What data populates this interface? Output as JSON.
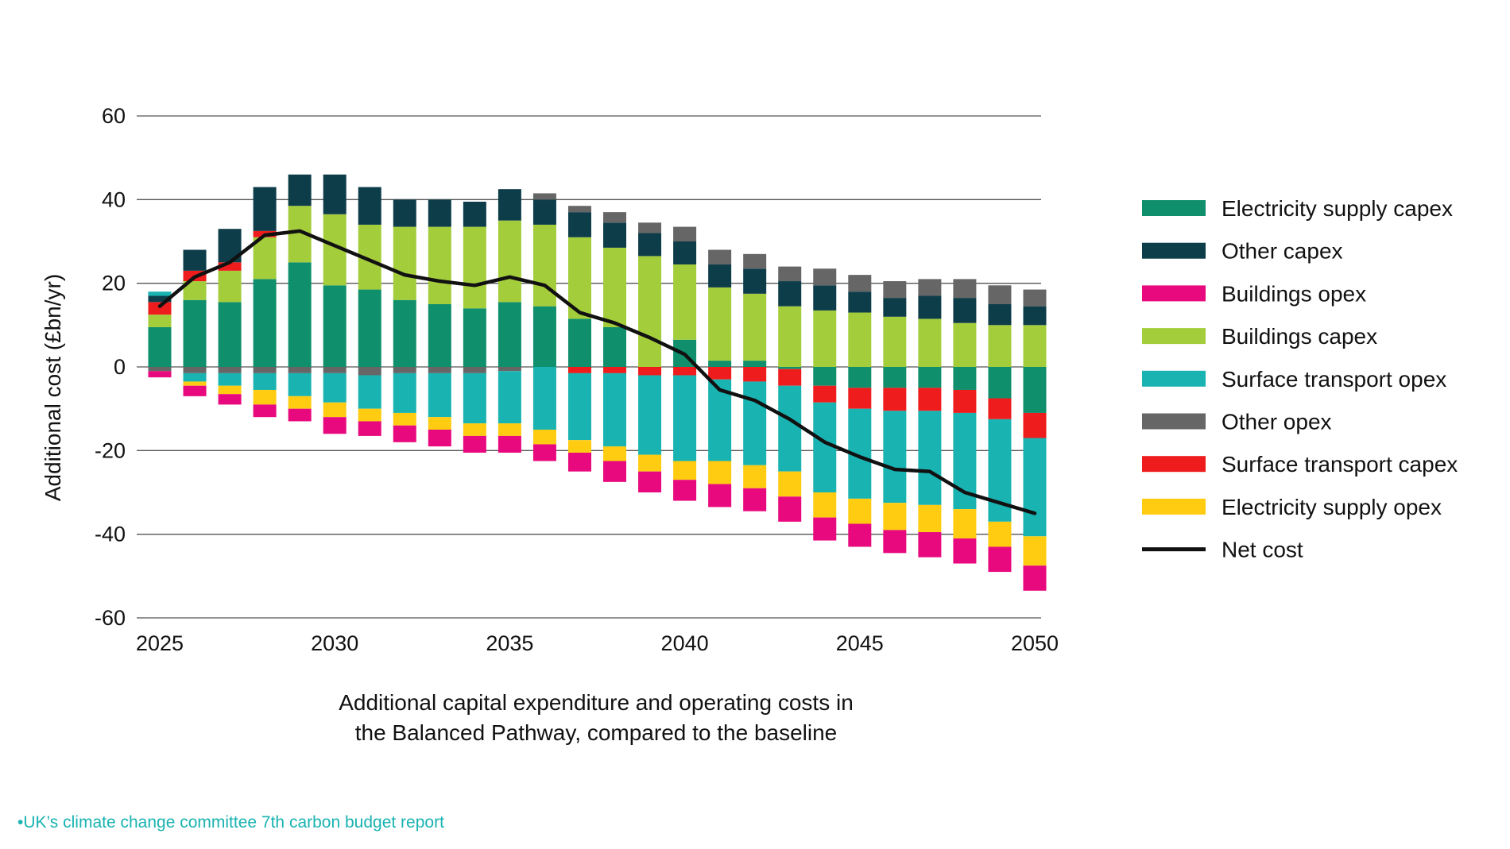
{
  "chart_data": {
    "type": "bar",
    "stacked": true,
    "title": "",
    "xlabel": "",
    "ylabel": "Additional cost (£bn/yr)",
    "ylim": [
      -60,
      60
    ],
    "yticks": [
      60,
      40,
      20,
      0,
      -20,
      -40,
      -60
    ],
    "xticks": [
      2025,
      2030,
      2035,
      2040,
      2045,
      2050
    ],
    "caption_lines": [
      "Additional capital expenditure and operating costs in",
      "the Balanced Pathway, compared to the baseline"
    ],
    "legend_position": "right",
    "categories": [
      2025,
      2026,
      2027,
      2028,
      2029,
      2030,
      2031,
      2032,
      2033,
      2034,
      2035,
      2036,
      2037,
      2038,
      2039,
      2040,
      2041,
      2042,
      2043,
      2044,
      2045,
      2046,
      2047,
      2048,
      2049,
      2050
    ],
    "series": [
      {
        "key": "elec_capex",
        "name": "Electricity supply capex",
        "color": "#0f8f6b",
        "values": [
          9.5,
          16,
          15.5,
          21,
          25,
          19.5,
          18.5,
          16,
          15,
          14,
          15.5,
          14.5,
          11.5,
          9.5,
          0,
          6.5,
          1.5,
          1.5,
          -0.5,
          -4.5,
          -5,
          -5,
          -5,
          -5.5,
          -7.5,
          -11
        ]
      },
      {
        "key": "bld_capex",
        "name": "Buildings capex",
        "color": "#a4cd3c",
        "values": [
          3,
          4.5,
          7.5,
          10,
          13.5,
          17,
          15.5,
          17.5,
          18.5,
          19.5,
          19.5,
          19.5,
          19.5,
          19,
          26.5,
          18,
          17.5,
          16,
          14.5,
          13.5,
          13,
          12,
          11.5,
          10.5,
          10,
          10
        ]
      },
      {
        "key": "st_capex",
        "name": "Surface transport capex",
        "color": "#ee1c1c",
        "values": [
          3,
          2.5,
          2,
          1.5,
          0,
          0,
          0,
          0,
          0,
          0,
          0,
          0,
          -1.5,
          -1.5,
          -2,
          -2,
          -3,
          -3.5,
          -4,
          -4,
          -5,
          -5.5,
          -5.5,
          -5.5,
          -5,
          -6
        ]
      },
      {
        "key": "other_capex",
        "name": "Other capex",
        "color": "#0e3d4a",
        "values": [
          1.5,
          5,
          8,
          10.5,
          7.5,
          9.5,
          9,
          6.5,
          6.5,
          6,
          7.5,
          6,
          6,
          6,
          5.5,
          5.5,
          5.5,
          6,
          6,
          6,
          5,
          4.5,
          5.5,
          6,
          5,
          4.5
        ]
      },
      {
        "key": "other_opex",
        "name": "Other opex",
        "color": "#666666",
        "values": [
          -1,
          -1.5,
          -1.5,
          -1.5,
          -1.5,
          -1.5,
          -2,
          -1.5,
          -1.5,
          -1.5,
          -1,
          1.5,
          1.5,
          2.5,
          2.5,
          3.5,
          3.5,
          3.5,
          3.5,
          4,
          4,
          4,
          4,
          4.5,
          4.5,
          4
        ]
      },
      {
        "key": "st_opex",
        "name": "Surface transport opex",
        "color": "#19b3b1",
        "values": [
          1,
          -2,
          -3,
          -4,
          -5.5,
          -7,
          -8,
          -9.5,
          -10.5,
          -12,
          -12.5,
          -15,
          -16,
          -17.5,
          -19,
          -20.5,
          -19.5,
          -20,
          -20.5,
          -21.5,
          -21.5,
          -22,
          -22.5,
          -23,
          -24.5,
          -23.5
        ]
      },
      {
        "key": "elec_opex",
        "name": "Electricity supply opex",
        "color": "#ffcc11",
        "values": [
          0,
          -1,
          -2,
          -3.5,
          -3,
          -3.5,
          -3,
          -3,
          -3,
          -3,
          -3,
          -3.5,
          -3,
          -3.5,
          -4,
          -4.5,
          -5.5,
          -5.5,
          -6,
          -6,
          -6,
          -6.5,
          -6.5,
          -7,
          -6,
          -7
        ]
      },
      {
        "key": "bld_opex",
        "name": "Buildings opex",
        "color": "#e8097e",
        "values": [
          -1.5,
          -2.5,
          -2.5,
          -3,
          -3,
          -4,
          -3.5,
          -4,
          -4,
          -4,
          -4,
          -4,
          -4.5,
          -5,
          -5,
          -5,
          -5.5,
          -5.5,
          -6,
          -5.5,
          -5.5,
          -5.5,
          -6,
          -6,
          -6,
          -6
        ]
      }
    ],
    "net_cost": {
      "name": "Net cost",
      "color": "#111111",
      "values": [
        14.5,
        21.5,
        25,
        31.5,
        32.5,
        29,
        25.5,
        22,
        20.5,
        19.5,
        21.5,
        19.5,
        13,
        10.5,
        7,
        3,
        -5.5,
        -8,
        -12.5,
        -18,
        -21.5,
        -24.5,
        -25,
        -30,
        -32.5,
        -35
      ]
    },
    "legend_order": [
      "elec_capex",
      "other_capex",
      "bld_opex",
      "bld_capex",
      "st_opex",
      "other_opex",
      "st_capex",
      "elec_opex",
      "net_cost"
    ]
  },
  "source_note": "•UK’s climate change committee 7th carbon budget report"
}
